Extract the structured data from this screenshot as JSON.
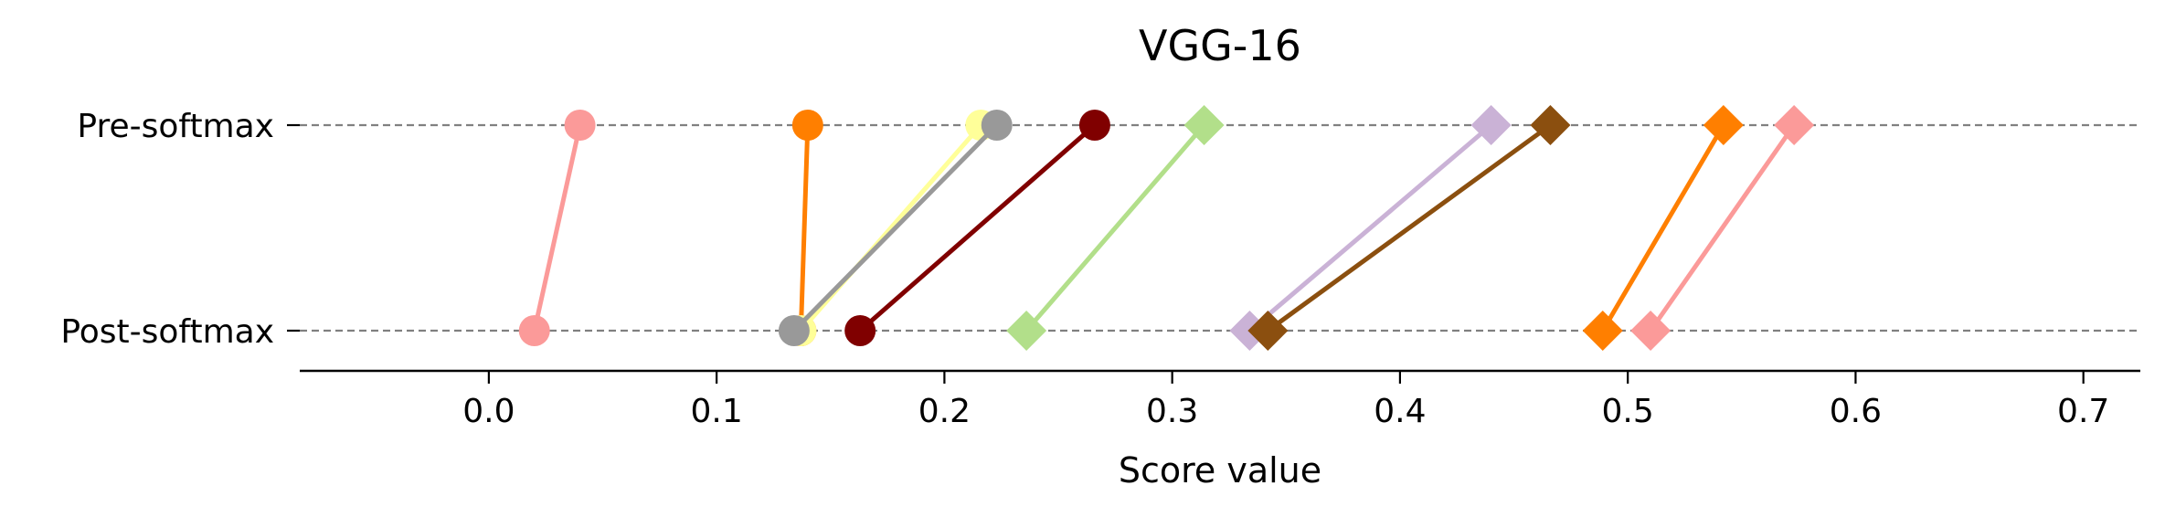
{
  "chart_data": {
    "type": "line",
    "title": "VGG-16",
    "xlabel": "Score value",
    "ylabel": "",
    "xlim": [
      -0.083,
      0.725
    ],
    "xticks": [
      0.0,
      0.1,
      0.2,
      0.3,
      0.4,
      0.5,
      0.6,
      0.7
    ],
    "xtick_labels": [
      "0.0",
      "0.1",
      "0.2",
      "0.3",
      "0.4",
      "0.5",
      "0.6",
      "0.7"
    ],
    "categories": [
      "Pre-softmax",
      "Post-softmax"
    ],
    "grid": "horizontal dashed",
    "legend": "none",
    "series": [
      {
        "color": "#fb9a99",
        "marker": "circle",
        "pre": 0.04,
        "post": 0.02
      },
      {
        "color": "#ff7f00",
        "marker": "circle",
        "pre": 0.14,
        "post": 0.137
      },
      {
        "color": "#ffff99",
        "marker": "circle",
        "pre": 0.216,
        "post": 0.137
      },
      {
        "color": "#999999",
        "marker": "circle",
        "pre": 0.223,
        "post": 0.134
      },
      {
        "color": "#800000",
        "marker": "circle",
        "pre": 0.266,
        "post": 0.163
      },
      {
        "color": "#b2df8a",
        "marker": "diamond",
        "pre": 0.314,
        "post": 0.236
      },
      {
        "color": "#cab2d6",
        "marker": "diamond",
        "pre": 0.44,
        "post": 0.334
      },
      {
        "color": "#8b4f0f",
        "marker": "diamond",
        "pre": 0.466,
        "post": 0.342
      },
      {
        "color": "#ff7f00",
        "marker": "diamond",
        "pre": 0.542,
        "post": 0.489
      },
      {
        "color": "#fb9a99",
        "marker": "diamond",
        "pre": 0.573,
        "post": 0.51
      }
    ]
  }
}
